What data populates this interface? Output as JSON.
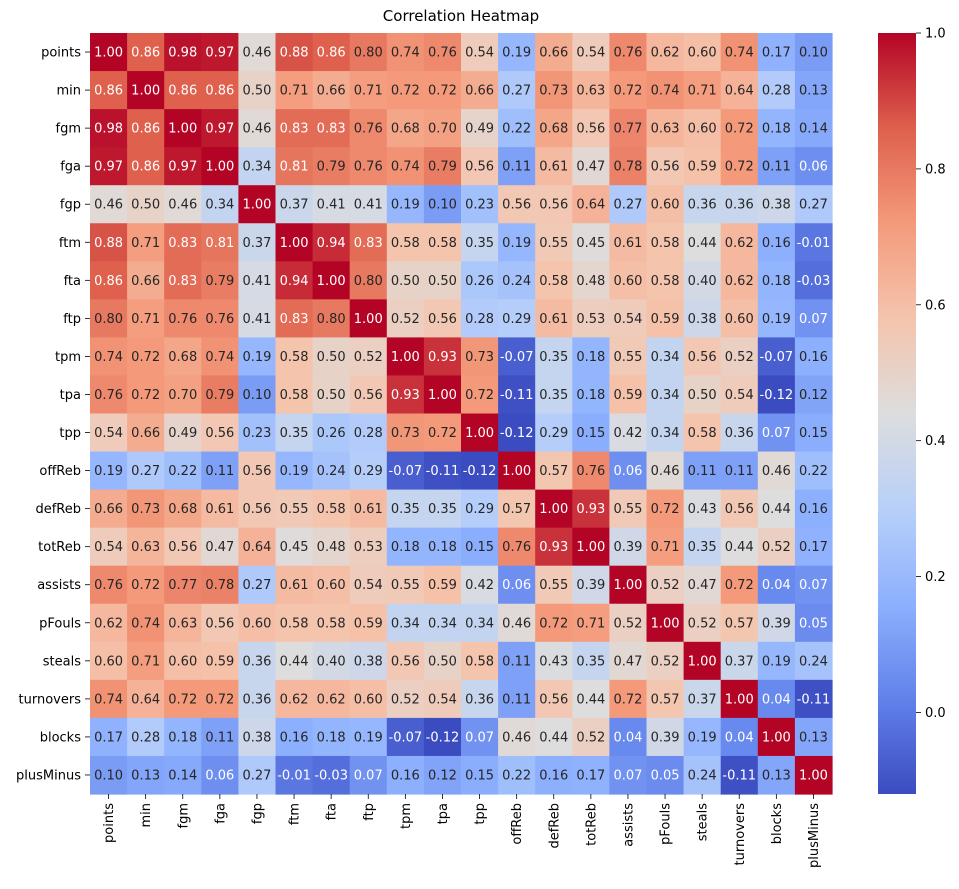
{
  "chart_data": {
    "type": "heatmap",
    "title": "Correlation Heatmap",
    "xlabel": "",
    "ylabel": "",
    "colormap": "coolwarm",
    "color_range": [
      -0.12,
      1.0
    ],
    "colorbar_ticks": [
      "0.0",
      "0.2",
      "0.4",
      "0.6",
      "0.8",
      "1.0"
    ],
    "colorbar_tick_values": [
      0.0,
      0.2,
      0.4,
      0.6,
      0.8,
      1.0
    ],
    "labels": [
      "points",
      "min",
      "fgm",
      "fga",
      "fgp",
      "ftm",
      "fta",
      "ftp",
      "tpm",
      "tpa",
      "tpp",
      "offReb",
      "defReb",
      "totReb",
      "assists",
      "pFouls",
      "steals",
      "turnovers",
      "blocks",
      "plusMinus"
    ],
    "matrix": [
      [
        "1.00",
        "0.86",
        "0.98",
        "0.97",
        "0.46",
        "0.88",
        "0.86",
        "0.80",
        "0.74",
        "0.76",
        "0.54",
        "0.19",
        "0.66",
        "0.54",
        "0.76",
        "0.62",
        "0.60",
        "0.74",
        "0.17",
        "0.10"
      ],
      [
        "0.86",
        "1.00",
        "0.86",
        "0.86",
        "0.50",
        "0.71",
        "0.66",
        "0.71",
        "0.72",
        "0.72",
        "0.66",
        "0.27",
        "0.73",
        "0.63",
        "0.72",
        "0.74",
        "0.71",
        "0.64",
        "0.28",
        "0.13"
      ],
      [
        "0.98",
        "0.86",
        "1.00",
        "0.97",
        "0.46",
        "0.83",
        "0.83",
        "0.76",
        "0.68",
        "0.70",
        "0.49",
        "0.22",
        "0.68",
        "0.56",
        "0.77",
        "0.63",
        "0.60",
        "0.72",
        "0.18",
        "0.14"
      ],
      [
        "0.97",
        "0.86",
        "0.97",
        "1.00",
        "0.34",
        "0.81",
        "0.79",
        "0.76",
        "0.74",
        "0.79",
        "0.56",
        "0.11",
        "0.61",
        "0.47",
        "0.78",
        "0.56",
        "0.59",
        "0.72",
        "0.11",
        "0.06"
      ],
      [
        "0.46",
        "0.50",
        "0.46",
        "0.34",
        "1.00",
        "0.37",
        "0.41",
        "0.41",
        "0.19",
        "0.10",
        "0.23",
        "0.56",
        "0.56",
        "0.64",
        "0.27",
        "0.60",
        "0.36",
        "0.36",
        "0.38",
        "0.27"
      ],
      [
        "0.88",
        "0.71",
        "0.83",
        "0.81",
        "0.37",
        "1.00",
        "0.94",
        "0.83",
        "0.58",
        "0.58",
        "0.35",
        "0.19",
        "0.55",
        "0.45",
        "0.61",
        "0.58",
        "0.44",
        "0.62",
        "0.16",
        "-0.01"
      ],
      [
        "0.86",
        "0.66",
        "0.83",
        "0.79",
        "0.41",
        "0.94",
        "1.00",
        "0.80",
        "0.50",
        "0.50",
        "0.26",
        "0.24",
        "0.58",
        "0.48",
        "0.60",
        "0.58",
        "0.40",
        "0.62",
        "0.18",
        "-0.03"
      ],
      [
        "0.80",
        "0.71",
        "0.76",
        "0.76",
        "0.41",
        "0.83",
        "0.80",
        "1.00",
        "0.52",
        "0.56",
        "0.28",
        "0.29",
        "0.61",
        "0.53",
        "0.54",
        "0.59",
        "0.38",
        "0.60",
        "0.19",
        "0.07"
      ],
      [
        "0.74",
        "0.72",
        "0.68",
        "0.74",
        "0.19",
        "0.58",
        "0.50",
        "0.52",
        "1.00",
        "0.93",
        "0.73",
        "-0.07",
        "0.35",
        "0.18",
        "0.55",
        "0.34",
        "0.56",
        "0.52",
        "-0.07",
        "0.16"
      ],
      [
        "0.76",
        "0.72",
        "0.70",
        "0.79",
        "0.10",
        "0.58",
        "0.50",
        "0.56",
        "0.93",
        "1.00",
        "0.72",
        "-0.11",
        "0.35",
        "0.18",
        "0.59",
        "0.34",
        "0.50",
        "0.54",
        "-0.12",
        "0.12"
      ],
      [
        "0.54",
        "0.66",
        "0.49",
        "0.56",
        "0.23",
        "0.35",
        "0.26",
        "0.28",
        "0.73",
        "0.72",
        "1.00",
        "-0.12",
        "0.29",
        "0.15",
        "0.42",
        "0.34",
        "0.58",
        "0.36",
        "0.07",
        "0.15"
      ],
      [
        "0.19",
        "0.27",
        "0.22",
        "0.11",
        "0.56",
        "0.19",
        "0.24",
        "0.29",
        "-0.07",
        "-0.11",
        "-0.12",
        "1.00",
        "0.57",
        "0.76",
        "0.06",
        "0.46",
        "0.11",
        "0.11",
        "0.46",
        "0.22"
      ],
      [
        "0.66",
        "0.73",
        "0.68",
        "0.61",
        "0.56",
        "0.55",
        "0.58",
        "0.61",
        "0.35",
        "0.35",
        "0.29",
        "0.57",
        "1.00",
        "0.93",
        "0.55",
        "0.72",
        "0.43",
        "0.56",
        "0.44",
        "0.16"
      ],
      [
        "0.54",
        "0.63",
        "0.56",
        "0.47",
        "0.64",
        "0.45",
        "0.48",
        "0.53",
        "0.18",
        "0.18",
        "0.15",
        "0.76",
        "0.93",
        "1.00",
        "0.39",
        "0.71",
        "0.35",
        "0.44",
        "0.52",
        "0.17"
      ],
      [
        "0.76",
        "0.72",
        "0.77",
        "0.78",
        "0.27",
        "0.61",
        "0.60",
        "0.54",
        "0.55",
        "0.59",
        "0.42",
        "0.06",
        "0.55",
        "0.39",
        "1.00",
        "0.52",
        "0.47",
        "0.72",
        "0.04",
        "0.07"
      ],
      [
        "0.62",
        "0.74",
        "0.63",
        "0.56",
        "0.60",
        "0.58",
        "0.58",
        "0.59",
        "0.34",
        "0.34",
        "0.34",
        "0.46",
        "0.72",
        "0.71",
        "0.52",
        "1.00",
        "0.52",
        "0.57",
        "0.39",
        "0.05"
      ],
      [
        "0.60",
        "0.71",
        "0.60",
        "0.59",
        "0.36",
        "0.44",
        "0.40",
        "0.38",
        "0.56",
        "0.50",
        "0.58",
        "0.11",
        "0.43",
        "0.35",
        "0.47",
        "0.52",
        "1.00",
        "0.37",
        "0.19",
        "0.24"
      ],
      [
        "0.74",
        "0.64",
        "0.72",
        "0.72",
        "0.36",
        "0.62",
        "0.62",
        "0.60",
        "0.52",
        "0.54",
        "0.36",
        "0.11",
        "0.56",
        "0.44",
        "0.72",
        "0.57",
        "0.37",
        "1.00",
        "0.04",
        "-0.11"
      ],
      [
        "0.17",
        "0.28",
        "0.18",
        "0.11",
        "0.38",
        "0.16",
        "0.18",
        "0.19",
        "-0.07",
        "-0.12",
        "0.07",
        "0.46",
        "0.44",
        "0.52",
        "0.04",
        "0.39",
        "0.19",
        "0.04",
        "1.00",
        "0.13"
      ],
      [
        "0.10",
        "0.13",
        "0.14",
        "0.06",
        "0.27",
        "-0.01",
        "-0.03",
        "0.07",
        "0.16",
        "0.12",
        "0.15",
        "0.22",
        "0.16",
        "0.17",
        "0.07",
        "0.05",
        "0.24",
        "-0.11",
        "0.13",
        "1.00"
      ]
    ]
  }
}
